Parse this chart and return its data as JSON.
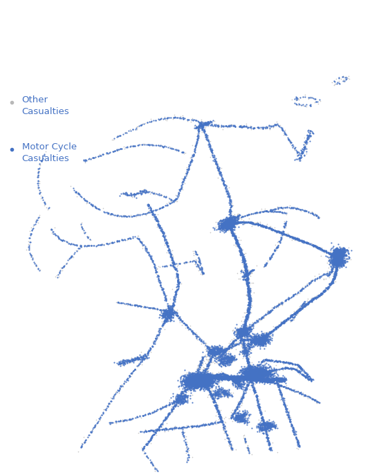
{
  "legend_labels": [
    "Other\nCasualties",
    "Motor Cycle\nCasualties"
  ],
  "other_color": "#b8b8b8",
  "mc_color": "#4472c4",
  "bg_color": "#ffffff",
  "marker_size_other": 1.5,
  "marker_size_mc": 2.5,
  "alpha_other": 0.75,
  "alpha_mc": 0.9,
  "figsize": [
    5.51,
    6.84
  ],
  "dpi": 100,
  "legend_fontsize": 9.5,
  "legend_color": "#4472c4"
}
